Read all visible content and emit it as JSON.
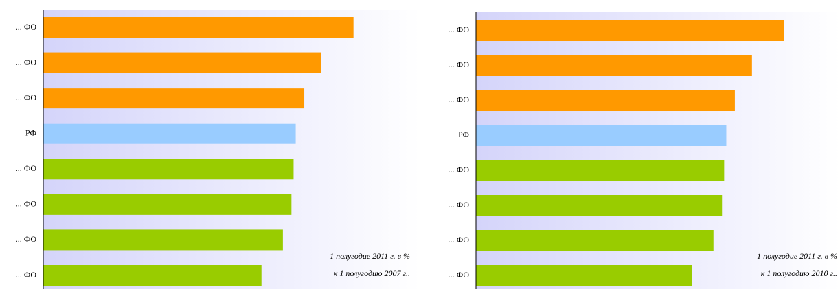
{
  "chart_data": [
    {
      "type": "bar",
      "categories": [
        "... ФО",
        "... ФО",
        "... ФО",
        "РФ",
        "... ФО",
        "... ФО",
        "... ФО",
        "... ФО"
      ],
      "values": [
        145,
        130,
        122,
        118,
        117,
        116,
        112,
        102
      ],
      "colors": [
        "#ff9900",
        "#ff9900",
        "#ff9900",
        "#99ccff",
        "#99cc00",
        "#99cc00",
        "#99cc00",
        "#99cc00"
      ],
      "annotation": [
        "1 полугодие 2011 г. в %",
        "к 1 полугодию 2007 г.."
      ]
    },
    {
      "type": "bar",
      "categories": [
        "... ФО",
        "... ФО",
        "... ФО",
        "РФ",
        "... ФО",
        "... ФО",
        "... ФО",
        "... ФО"
      ],
      "values": [
        144,
        129,
        121,
        117,
        116,
        115,
        111,
        101
      ],
      "colors": [
        "#ff9900",
        "#ff9900",
        "#ff9900",
        "#99ccff",
        "#99cc00",
        "#99cc00",
        "#99cc00",
        "#99cc00"
      ],
      "annotation": [
        "1 полугодие 2011 г. в %",
        "к 1 полугодию 2010 г.."
      ]
    }
  ]
}
